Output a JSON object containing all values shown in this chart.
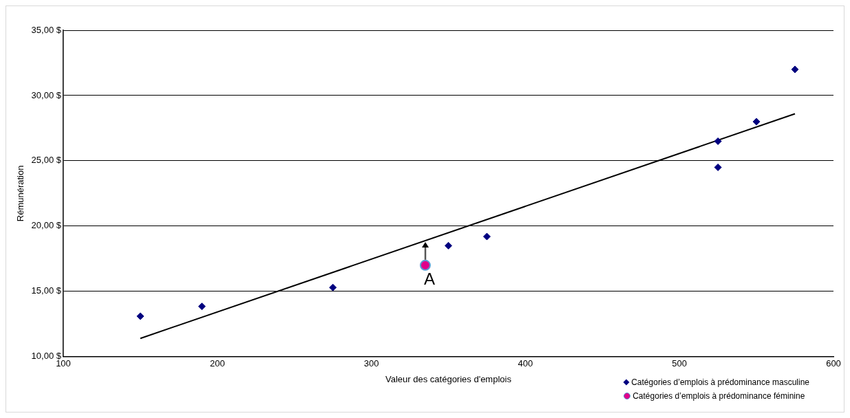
{
  "chart_data": {
    "type": "scatter",
    "xlabel": "Valeur des catégories d'emplois",
    "ylabel": "Rémunération",
    "xlim": [
      100,
      600
    ],
    "xticks": [
      100,
      200,
      300,
      400,
      500,
      600
    ],
    "ylim": [
      10,
      35
    ],
    "yticks": [
      {
        "value": 10,
        "label": "10,00 $"
      },
      {
        "value": 15,
        "label": "15,00 $"
      },
      {
        "value": 20,
        "label": "20,00 $"
      },
      {
        "value": 25,
        "label": "25,00 $"
      },
      {
        "value": 30,
        "label": "30,00 $"
      },
      {
        "value": 35,
        "label": "35,00 $"
      }
    ],
    "grid": "y",
    "legend": "bottom right",
    "series": [
      {
        "name": "Catégories d’emplois à prédominance masculine",
        "marker": "diamond",
        "color": "#000080",
        "x": [
          150,
          190,
          275,
          350,
          375,
          525,
          525,
          550,
          575
        ],
        "values": [
          13.1,
          13.85,
          15.3,
          18.5,
          19.2,
          26.5,
          24.5,
          28,
          32
        ]
      },
      {
        "name": "Catégories d’emplois à prédominance féminine",
        "marker": "circle",
        "color": "#e0008a",
        "x": [
          335
        ],
        "values": [
          17
        ]
      },
      {
        "type": "line",
        "marker": "none",
        "color": "#000000",
        "x": [
          150,
          575
        ],
        "values": [
          11.4,
          28.6
        ]
      }
    ],
    "annotations": [
      {
        "text": "A",
        "x": 335,
        "y": 17
      }
    ]
  }
}
